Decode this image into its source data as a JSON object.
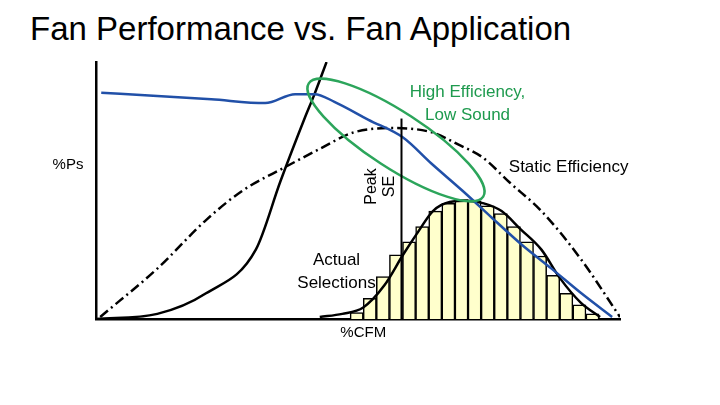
{
  "chart_data": {
    "type": "line",
    "title": "Fan Performance vs. Fan Application",
    "x_label": "%CFM",
    "y_label": "%Ps",
    "xlim": [
      0,
      100
    ],
    "ylim": [
      0,
      100
    ],
    "grid": false,
    "tick_labels": false,
    "series": [
      {
        "type": "line",
        "color": "#2150a8",
        "line_style": "solid",
        "x": [
          1,
          11.7,
          22,
          32.3,
          38,
          41.7,
          45.5,
          52,
          58.6,
          64,
          70,
          75.5,
          81.2,
          87,
          92.5,
          98.5
        ],
        "values": [
          88,
          86.8,
          85.5,
          84,
          87.5,
          87.5,
          84.5,
          77.5,
          70.6,
          60.5,
          49.8,
          39.5,
          29,
          19.5,
          10.2,
          0.8
        ]
      },
      {
        "type": "line",
        "color": "#000000",
        "line_style": "dashdot",
        "x": [
          0.8,
          11.7,
          21,
          28,
          36,
          43,
          49,
          56.8,
          64.3,
          69,
          73.7,
          79,
          85,
          92.5,
          100
        ],
        "values": [
          0.8,
          19.6,
          38.5,
          50,
          59,
          66.5,
          72.5,
          74.3,
          72.5,
          68,
          63,
          53,
          42,
          23.4,
          0.8
        ]
      },
      {
        "type": "line",
        "color": "#000000",
        "line_style": "solid",
        "x": [
          0,
          11.7,
          21,
          30.5,
          35.2,
          39.8,
          41.7,
          44
        ],
        "values": [
          0,
          2,
          10,
          27,
          53.6,
          78,
          87.5,
          100
        ]
      },
      {
        "type": "histogram",
        "color": "#ffffcc",
        "bins": [
          48.5,
          51,
          53.5,
          56,
          58.5,
          61,
          63.5,
          66,
          68.5,
          71,
          73.5,
          76,
          78.5,
          81,
          83.5,
          86,
          88.5,
          91,
          93.5,
          96
        ],
        "values": [
          2.5,
          8,
          16.5,
          25,
          30,
          36,
          42,
          45,
          46.5,
          46,
          44,
          41,
          36,
          30,
          24.5,
          17,
          10,
          5.5,
          2
        ]
      },
      {
        "type": "line",
        "color": "#000000",
        "line_style": "solid",
        "x": [
          42.7,
          47,
          51,
          55,
          58.6,
          61.5,
          64.3,
          67.5,
          70.9,
          74,
          77.4,
          81,
          85,
          88.5,
          92.5,
          96.2
        ],
        "values": [
          0.8,
          2,
          4.5,
          13,
          25,
          34,
          42,
          45.5,
          46,
          45,
          42,
          35,
          27,
          16,
          6.4,
          0.8
        ]
      }
    ],
    "reference_line": {
      "x": 58.3,
      "y": [
        0,
        78
      ],
      "label": "Peak\nSE"
    },
    "annotations": [
      {
        "text": "High Efficiency,\nLow Sound",
        "x": 70.9,
        "y": 83.8,
        "color": "#1e9a4e"
      },
      {
        "text": "Static Efficiency",
        "x": 90.2,
        "y": 59.2,
        "color": "#000000"
      },
      {
        "text": "Actual\nSelections",
        "x": 45.9,
        "y": 18.5,
        "color": "#000000"
      }
    ]
  }
}
